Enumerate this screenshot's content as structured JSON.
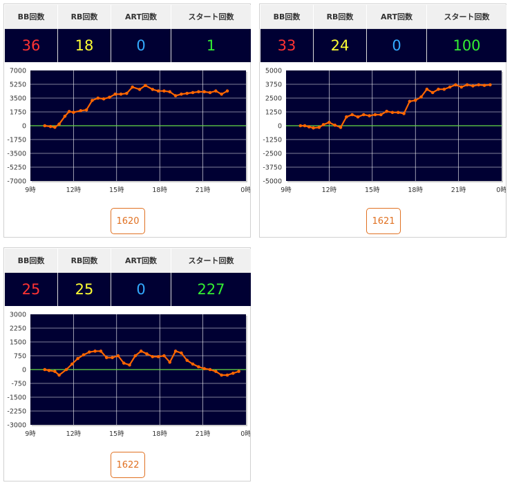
{
  "columns": {
    "bb": "BB回数",
    "rb": "RB回数",
    "art": "ART回数",
    "start": "スタート回数"
  },
  "colors": {
    "bb": "#ff3333",
    "rb": "#ffff33",
    "art": "#33aaff",
    "start": "#33ee33",
    "line": "#ff6600",
    "zero_line": "#66dd44",
    "plot_bg": "#000033"
  },
  "machines": [
    {
      "stats": {
        "bb": "36",
        "rb": "18",
        "art": "0",
        "start": "1"
      },
      "machine_no": "1620",
      "chart_data": {
        "type": "line",
        "ylim": [
          -7000,
          7000
        ],
        "y_ticks": [
          "7000",
          "5250",
          "3500",
          "1750",
          "0",
          "-1750",
          "-3500",
          "-5250",
          "-7000"
        ],
        "x_ticks": [
          "9時",
          "12時",
          "15時",
          "18時",
          "21時",
          "0時"
        ],
        "xlim": [
          9,
          24
        ],
        "x": [
          10.0,
          10.4,
          10.7,
          11.0,
          11.4,
          11.7,
          12.0,
          12.5,
          12.9,
          13.3,
          13.7,
          14.1,
          14.5,
          14.9,
          15.3,
          15.7,
          16.1,
          16.6,
          17.0,
          17.5,
          17.9,
          18.3,
          18.7,
          19.1,
          19.5,
          19.9,
          20.3,
          20.7,
          21.1,
          21.5,
          21.9,
          22.3,
          22.7
        ],
        "y": [
          0,
          -100,
          -200,
          200,
          1200,
          1800,
          1700,
          1900,
          2000,
          3200,
          3500,
          3400,
          3600,
          4000,
          4000,
          4100,
          4900,
          4600,
          5100,
          4600,
          4400,
          4400,
          4300,
          3800,
          4000,
          4100,
          4200,
          4300,
          4300,
          4200,
          4400,
          4000,
          4400
        ]
      }
    },
    {
      "stats": {
        "bb": "33",
        "rb": "24",
        "art": "0",
        "start": "100"
      },
      "machine_no": "1621",
      "chart_data": {
        "type": "line",
        "ylim": [
          -5000,
          5000
        ],
        "y_ticks": [
          "5000",
          "3750",
          "2500",
          "1250",
          "0",
          "-1250",
          "-2500",
          "-3750",
          "-5000"
        ],
        "x_ticks": [
          "9時",
          "12時",
          "15時",
          "18時",
          "21時",
          "0時"
        ],
        "xlim": [
          9,
          24
        ],
        "x": [
          10.0,
          10.3,
          10.6,
          10.9,
          11.3,
          11.6,
          12.0,
          12.4,
          12.8,
          13.2,
          13.6,
          14.0,
          14.4,
          14.8,
          15.2,
          15.6,
          16.0,
          16.4,
          16.8,
          17.2,
          17.6,
          18.0,
          18.4,
          18.8,
          19.2,
          19.6,
          20.0,
          20.4,
          20.8,
          21.2,
          21.6,
          22.0,
          22.4,
          22.8,
          23.2
        ],
        "y": [
          0,
          0,
          -100,
          -200,
          -150,
          100,
          300,
          50,
          -150,
          800,
          1000,
          800,
          1000,
          900,
          1000,
          1000,
          1300,
          1200,
          1200,
          1100,
          2200,
          2300,
          2600,
          3300,
          3000,
          3300,
          3300,
          3500,
          3700,
          3500,
          3700,
          3600,
          3700,
          3650,
          3700
        ]
      }
    },
    {
      "stats": {
        "bb": "25",
        "rb": "25",
        "art": "0",
        "start": "227"
      },
      "machine_no": "1622",
      "chart_data": {
        "type": "line",
        "ylim": [
          -3000,
          3000
        ],
        "y_ticks": [
          "3000",
          "2250",
          "1500",
          "750",
          "0",
          "-750",
          "-1500",
          "-2250",
          "-3000"
        ],
        "x_ticks": [
          "9時",
          "12時",
          "15時",
          "18時",
          "21時",
          "0時"
        ],
        "xlim": [
          9,
          24
        ],
        "x": [
          10.0,
          10.3,
          10.7,
          11.0,
          11.5,
          11.9,
          12.3,
          12.7,
          13.1,
          13.5,
          13.9,
          14.3,
          14.7,
          15.1,
          15.5,
          15.9,
          16.3,
          16.7,
          17.1,
          17.5,
          17.9,
          18.3,
          18.7,
          19.1,
          19.5,
          19.9,
          20.3,
          20.7,
          21.1,
          21.5,
          21.9,
          22.3,
          22.7,
          23.1,
          23.5
        ],
        "y": [
          0,
          -50,
          -100,
          -300,
          0,
          300,
          600,
          800,
          950,
          1000,
          1000,
          650,
          650,
          750,
          350,
          250,
          750,
          1000,
          850,
          700,
          700,
          750,
          400,
          1000,
          900,
          500,
          300,
          150,
          50,
          0,
          -100,
          -300,
          -300,
          -200,
          -100
        ]
      }
    }
  ]
}
